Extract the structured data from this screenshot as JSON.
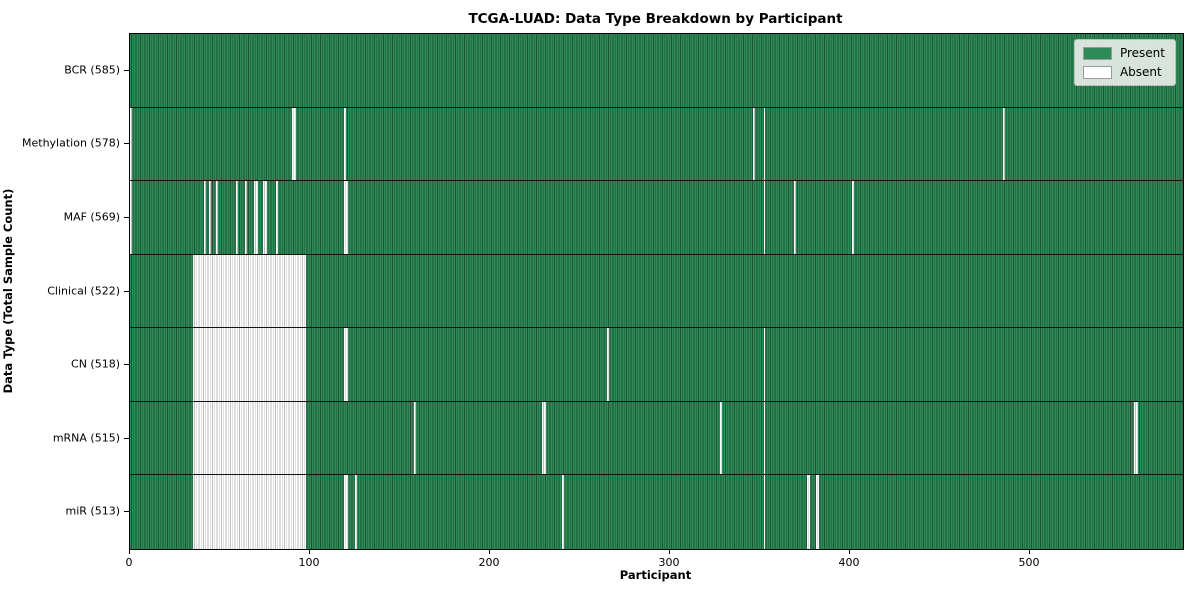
{
  "title": "TCGA-LUAD: Data Type Breakdown by Participant",
  "xlabel": "Participant",
  "ylabel": "Data Type (Total Sample Count)",
  "legend": {
    "present_label": "Present",
    "absent_label": "Absent"
  },
  "colors": {
    "present": "#2e8b57",
    "present_edge": "#1c5636",
    "absent": "#ffffff",
    "absent_edge": "#bdbdbd",
    "frame": "#000000",
    "legend_bg": "#eceeec"
  },
  "chart_data": {
    "type": "heatmap",
    "title": "TCGA-LUAD: Data Type Breakdown by Participant",
    "xlabel": "Participant",
    "ylabel": "Data Type (Total Sample Count)",
    "x_range": [
      0,
      585
    ],
    "x_ticks": [
      0,
      100,
      200,
      300,
      400,
      500
    ],
    "total_participants": 585,
    "legend_entries": [
      "Present",
      "Absent"
    ],
    "legend_position": "upper right",
    "grid": false,
    "rows": [
      {
        "name": "BCR",
        "label": "BCR (585)",
        "count": 585,
        "absent_ranges": []
      },
      {
        "name": "Methylation",
        "label": "Methylation (578)",
        "count": 578,
        "absent_ranges": [
          [
            0,
            0
          ],
          [
            90,
            91
          ],
          [
            119,
            119
          ],
          [
            346,
            346
          ],
          [
            352,
            352
          ],
          [
            485,
            485
          ]
        ]
      },
      {
        "name": "MAF",
        "label": "MAF (569)",
        "count": 569,
        "absent_ranges": [
          [
            0,
            0
          ],
          [
            41,
            41
          ],
          [
            44,
            44
          ],
          [
            48,
            48
          ],
          [
            59,
            59
          ],
          [
            64,
            64
          ],
          [
            69,
            70
          ],
          [
            74,
            75
          ],
          [
            81,
            81
          ],
          [
            119,
            120
          ],
          [
            352,
            352
          ],
          [
            369,
            369
          ],
          [
            401,
            401
          ]
        ]
      },
      {
        "name": "Clinical",
        "label": "Clinical (522)",
        "count": 522,
        "absent_ranges": [
          [
            35,
            97
          ]
        ]
      },
      {
        "name": "CN",
        "label": "CN (518)",
        "count": 518,
        "absent_ranges": [
          [
            35,
            97
          ],
          [
            119,
            120
          ],
          [
            265,
            265
          ],
          [
            352,
            352
          ]
        ]
      },
      {
        "name": "mRNA",
        "label": "mRNA (515)",
        "count": 515,
        "absent_ranges": [
          [
            35,
            97
          ],
          [
            158,
            158
          ],
          [
            229,
            230
          ],
          [
            328,
            328
          ],
          [
            352,
            352
          ],
          [
            558,
            559
          ]
        ]
      },
      {
        "name": "miR",
        "label": "miR (513)",
        "count": 513,
        "absent_ranges": [
          [
            35,
            97
          ],
          [
            119,
            120
          ],
          [
            125,
            125
          ],
          [
            240,
            240
          ],
          [
            352,
            352
          ],
          [
            376,
            377
          ],
          [
            381,
            382
          ]
        ]
      }
    ]
  }
}
